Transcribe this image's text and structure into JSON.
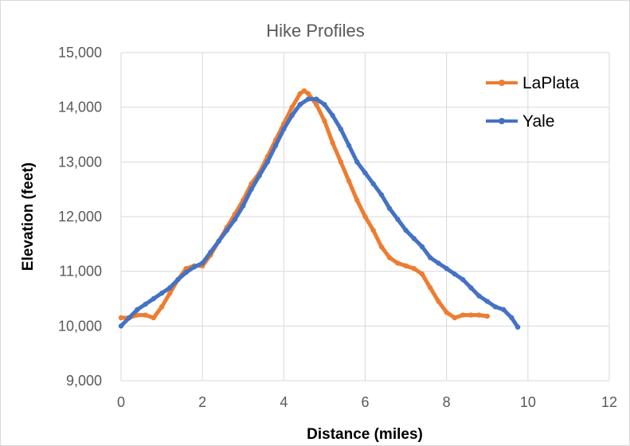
{
  "chart_data": {
    "type": "line",
    "title": "Hike Profiles",
    "xlabel": "Distance (miles)",
    "ylabel": "Elevation (feet)",
    "xlim": [
      0,
      12
    ],
    "ylim": [
      9000,
      15000
    ],
    "x_ticks": [
      "0",
      "2",
      "4",
      "6",
      "8",
      "10",
      "12"
    ],
    "y_ticks": [
      "9,000",
      "10,000",
      "11,000",
      "12,000",
      "13,000",
      "14,000",
      "15,000"
    ],
    "grid": true,
    "legend_position": "top-right",
    "series": [
      {
        "name": "LaPlata",
        "color": "#ED7D31",
        "points": [
          [
            0,
            10150
          ],
          [
            0.2,
            10150
          ],
          [
            0.4,
            10200
          ],
          [
            0.6,
            10200
          ],
          [
            0.8,
            10150
          ],
          [
            1.0,
            10350
          ],
          [
            1.2,
            10600
          ],
          [
            1.4,
            10850
          ],
          [
            1.6,
            11050
          ],
          [
            1.8,
            11100
          ],
          [
            2.0,
            11100
          ],
          [
            2.2,
            11300
          ],
          [
            2.4,
            11550
          ],
          [
            2.6,
            11800
          ],
          [
            2.8,
            12050
          ],
          [
            3.0,
            12300
          ],
          [
            3.2,
            12600
          ],
          [
            3.4,
            12800
          ],
          [
            3.6,
            13100
          ],
          [
            3.8,
            13400
          ],
          [
            4.0,
            13700
          ],
          [
            4.2,
            14000
          ],
          [
            4.4,
            14250
          ],
          [
            4.5,
            14300
          ],
          [
            4.6,
            14250
          ],
          [
            4.8,
            14050
          ],
          [
            5.0,
            13750
          ],
          [
            5.2,
            13350
          ],
          [
            5.4,
            13000
          ],
          [
            5.6,
            12650
          ],
          [
            5.8,
            12300
          ],
          [
            6.0,
            12000
          ],
          [
            6.2,
            11750
          ],
          [
            6.4,
            11450
          ],
          [
            6.6,
            11250
          ],
          [
            6.8,
            11150
          ],
          [
            7.0,
            11100
          ],
          [
            7.2,
            11050
          ],
          [
            7.4,
            10950
          ],
          [
            7.6,
            10700
          ],
          [
            7.8,
            10450
          ],
          [
            8.0,
            10250
          ],
          [
            8.2,
            10150
          ],
          [
            8.4,
            10200
          ],
          [
            8.6,
            10200
          ],
          [
            8.8,
            10200
          ],
          [
            9.0,
            10180
          ]
        ]
      },
      {
        "name": "Yale",
        "color": "#4472C4",
        "points": [
          [
            0,
            10000
          ],
          [
            0.2,
            10150
          ],
          [
            0.4,
            10300
          ],
          [
            0.6,
            10400
          ],
          [
            0.8,
            10500
          ],
          [
            1.0,
            10600
          ],
          [
            1.2,
            10700
          ],
          [
            1.4,
            10850
          ],
          [
            1.6,
            10980
          ],
          [
            1.8,
            11080
          ],
          [
            2.0,
            11150
          ],
          [
            2.2,
            11350
          ],
          [
            2.4,
            11550
          ],
          [
            2.6,
            11750
          ],
          [
            2.8,
            11950
          ],
          [
            3.0,
            12200
          ],
          [
            3.2,
            12500
          ],
          [
            3.4,
            12750
          ],
          [
            3.6,
            13000
          ],
          [
            3.8,
            13300
          ],
          [
            4.0,
            13600
          ],
          [
            4.2,
            13850
          ],
          [
            4.4,
            14050
          ],
          [
            4.6,
            14150
          ],
          [
            4.8,
            14150
          ],
          [
            5.0,
            14050
          ],
          [
            5.2,
            13850
          ],
          [
            5.4,
            13600
          ],
          [
            5.6,
            13300
          ],
          [
            5.8,
            13000
          ],
          [
            6.0,
            12800
          ],
          [
            6.2,
            12600
          ],
          [
            6.4,
            12400
          ],
          [
            6.6,
            12150
          ],
          [
            6.8,
            11950
          ],
          [
            7.0,
            11750
          ],
          [
            7.2,
            11600
          ],
          [
            7.4,
            11450
          ],
          [
            7.6,
            11250
          ],
          [
            7.8,
            11150
          ],
          [
            8.0,
            11050
          ],
          [
            8.2,
            10950
          ],
          [
            8.4,
            10850
          ],
          [
            8.6,
            10700
          ],
          [
            8.8,
            10550
          ],
          [
            9.0,
            10450
          ],
          [
            9.2,
            10350
          ],
          [
            9.4,
            10300
          ],
          [
            9.6,
            10150
          ],
          [
            9.75,
            9980
          ]
        ]
      }
    ]
  }
}
